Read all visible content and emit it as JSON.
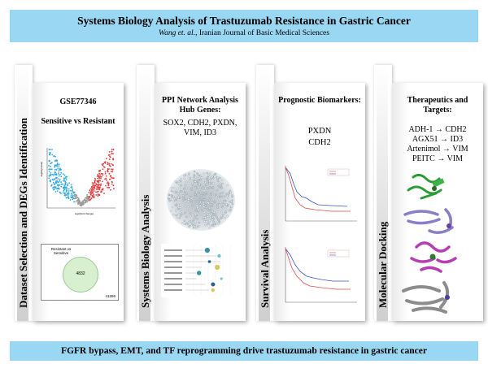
{
  "header": {
    "title": "Systems Biology Analysis of Trastuzumab Resistance in Gastric Cancer",
    "subtitle_authors": "Wang et. al.",
    "subtitle_rest": ", Iranian Journal of Basic Medical Sciences"
  },
  "columns": [
    {
      "side_label": "Dataset Selection and DEGs Identification",
      "title": "GSE77346",
      "subtitle": "Sensitive vs Resistant",
      "volcano": {
        "ylabel": "-log10(pvalue)",
        "xlabel": "log2(fold change)"
      },
      "venn": {
        "label": "Resistant vs Sensitive",
        "count": "4832",
        "total": "41286"
      }
    },
    {
      "side_label": "Systems Biology Analysis",
      "title": "PPI Network Analysis Hub Genes:",
      "text": "SOX2, CDH2, PXDN, VIM, ID3"
    },
    {
      "side_label": "Survival Analysis",
      "title": "Prognostic Biomarkers:",
      "genes": [
        "PXDN",
        "CDH2"
      ]
    },
    {
      "side_label": "Molecular Docking",
      "title": "Therapeutics and Targets:",
      "pairs": [
        "ADH-1 → CDH2",
        "AGX51 → ID3",
        "Artenimol → VIM",
        "PEITC → VIM"
      ]
    }
  ],
  "footer": "FGFR bypass, EMT, and TF reprogramming drive trastuzumab resistance in gastric cancer"
}
